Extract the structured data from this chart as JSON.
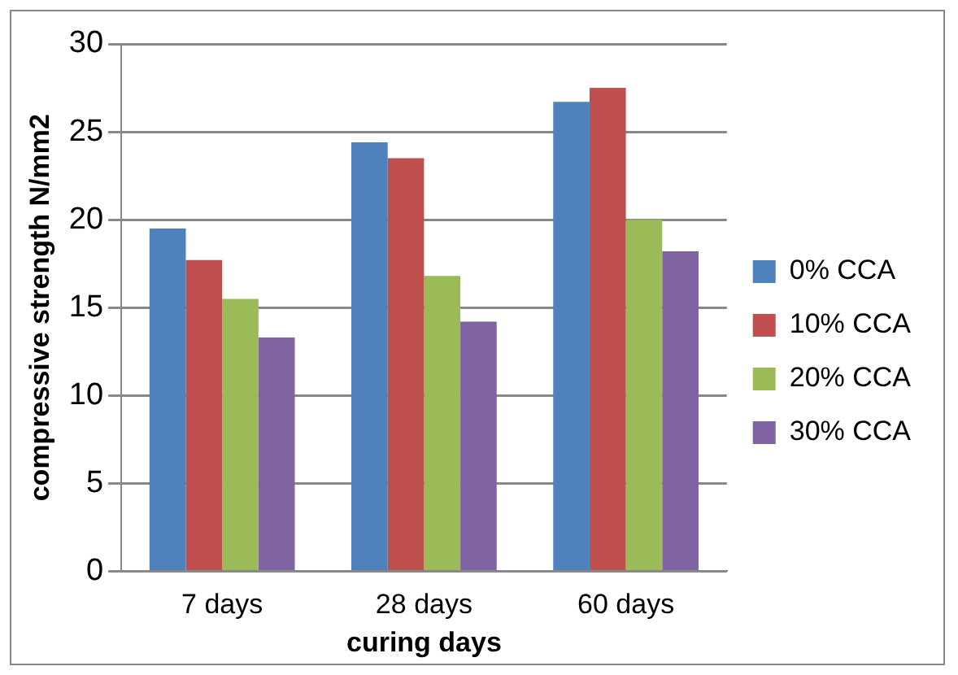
{
  "chart_data": {
    "type": "bar",
    "xlabel": "curing days",
    "ylabel": "compressive strength N/mm2",
    "categories": [
      "7 days",
      "28 days",
      "60 days"
    ],
    "series": [
      {
        "name": "0% CCA",
        "color": "#4f81bd",
        "values": [
          19.5,
          24.4,
          26.7
        ]
      },
      {
        "name": "10% CCA",
        "color": "#c0504d",
        "values": [
          17.7,
          23.5,
          27.5
        ]
      },
      {
        "name": "20% CCA",
        "color": "#9bbb59",
        "values": [
          15.5,
          16.8,
          20.0
        ]
      },
      {
        "name": "30% CCA",
        "color": "#8064a2",
        "values": [
          13.3,
          14.2,
          18.2
        ]
      }
    ],
    "ylim": [
      0,
      30
    ],
    "yticks": [
      0,
      5,
      10,
      15,
      20,
      25,
      30
    ],
    "grid": "y",
    "legend": "right"
  }
}
